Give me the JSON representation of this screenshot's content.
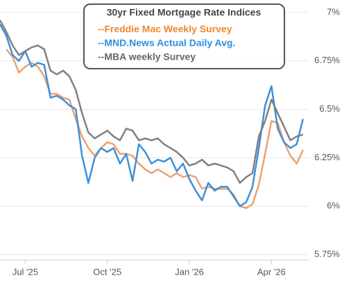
{
  "chart_data": {
    "type": "line",
    "legend_title": "30yr Fixed Mortgage Rate Indices",
    "categories": [
      null,
      null,
      null,
      null,
      "Jul '25",
      null,
      null,
      null,
      null,
      null,
      null,
      null,
      null,
      null,
      null,
      null,
      null,
      "Oct '25",
      null,
      null,
      null,
      null,
      null,
      null,
      null,
      null,
      null,
      null,
      null,
      null,
      "Jan '26",
      null,
      null,
      null,
      null,
      null,
      null,
      null,
      null,
      null,
      null,
      null,
      null,
      "Apr '26",
      null,
      null,
      null,
      null,
      null
    ],
    "series": [
      {
        "name": "--Freddie Mac Weekly Survey",
        "color": "#f0a070",
        "legend_color": "#f0862e",
        "values": [
          null,
          6.81,
          6.77,
          6.69,
          6.72,
          6.74,
          6.72,
          6.67,
          6.58,
          6.58,
          6.56,
          6.55,
          6.45,
          6.36,
          6.3,
          6.26,
          6.3,
          6.33,
          6.32,
          6.27,
          6.27,
          6.26,
          6.22,
          6.19,
          6.17,
          6.19,
          6.17,
          6.15,
          6.17,
          6.15,
          6.16,
          6.15,
          6.09,
          6.1,
          6.09,
          6.09,
          6.09,
          6.06,
          6.0,
          5.99,
          6.01,
          6.11,
          6.27,
          6.44,
          6.43,
          6.33,
          6.26,
          6.22,
          6.29
        ]
      },
      {
        "name": "--MND.News Actual Daily Avg.",
        "color": "#3d8fdc",
        "legend_color": "#2f8fe0",
        "values": [
          6.94,
          6.88,
          6.78,
          6.75,
          6.8,
          6.72,
          6.74,
          6.73,
          6.56,
          6.57,
          6.55,
          6.52,
          6.5,
          6.26,
          6.12,
          6.25,
          6.3,
          6.28,
          6.3,
          6.22,
          6.27,
          6.13,
          6.32,
          6.28,
          6.22,
          6.24,
          6.23,
          6.25,
          6.18,
          6.22,
          6.14,
          6.08,
          6.03,
          6.12,
          6.08,
          6.1,
          6.1,
          6.05,
          6.0,
          6.02,
          6.1,
          6.3,
          6.52,
          6.62,
          6.4,
          6.33,
          6.3,
          6.32,
          6.45
        ]
      },
      {
        "name": "--MBA weekly Survey",
        "color": "#808080",
        "legend_color": "#666666",
        "values": [
          6.96,
          6.9,
          6.83,
          6.78,
          6.8,
          6.82,
          6.83,
          6.81,
          6.7,
          6.68,
          6.7,
          6.67,
          6.6,
          6.48,
          6.38,
          6.35,
          6.37,
          6.39,
          6.36,
          6.34,
          6.4,
          6.39,
          6.34,
          6.35,
          6.34,
          6.35,
          6.32,
          6.3,
          6.28,
          6.25,
          6.21,
          6.22,
          6.24,
          6.21,
          6.22,
          6.21,
          6.2,
          6.18,
          6.12,
          6.15,
          6.17,
          6.36,
          6.44,
          6.55,
          6.48,
          6.41,
          6.34,
          6.36,
          6.37
        ]
      }
    ],
    "ylim": [
      5.75,
      7
    ],
    "yticks": [
      {
        "value": 5.75,
        "label": "5.75%"
      },
      {
        "value": 6,
        "label": "6%"
      },
      {
        "value": 6.25,
        "label": "6.25%"
      },
      {
        "value": 6.5,
        "label": "6.5%"
      },
      {
        "value": 6.75,
        "label": "6.75%"
      },
      {
        "value": 7,
        "label": "7%"
      }
    ],
    "grid": true
  }
}
